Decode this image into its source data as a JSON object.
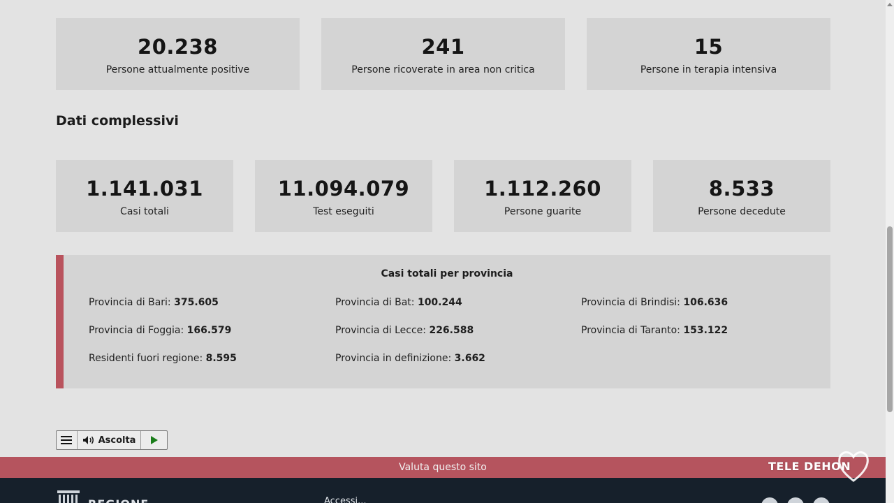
{
  "current_stats": [
    {
      "value": "20.238",
      "label": "Persone attualmente positive"
    },
    {
      "value": "241",
      "label": "Persone ricoverate in area non critica"
    },
    {
      "value": "15",
      "label": "Persone in terapia intensiva"
    }
  ],
  "section": {
    "title": "Dati complessivi"
  },
  "total_stats": [
    {
      "value": "1.141.031",
      "label": "Casi totali"
    },
    {
      "value": "11.094.079",
      "label": "Test eseguiti"
    },
    {
      "value": "1.112.260",
      "label": "Persone guarite"
    },
    {
      "value": "8.533",
      "label": "Persone decedute"
    }
  ],
  "provinces": {
    "title": "Casi totali per provincia",
    "items": [
      {
        "label": "Provincia di Bari:",
        "value": "375.605"
      },
      {
        "label": "Provincia di Bat:",
        "value": "100.244"
      },
      {
        "label": "Provincia di Brindisi:",
        "value": "106.636"
      },
      {
        "label": "Provincia di Foggia:",
        "value": "166.579"
      },
      {
        "label": "Provincia di Lecce:",
        "value": "226.588"
      },
      {
        "label": "Provincia di Taranto:",
        "value": "153.122"
      },
      {
        "label": "Residenti fuori regione:",
        "value": "8.595"
      },
      {
        "label": "Provincia in definizione:",
        "value": "3.662"
      }
    ]
  },
  "listen": {
    "label": "Ascolta"
  },
  "rate_bar": {
    "label": "Valuta questo sito"
  },
  "footer": {
    "brand": "REGIONE",
    "link": "Accessi..."
  },
  "watermark": {
    "text": "TELE DEHON"
  },
  "colors": {
    "accent": "#b5545e",
    "card": "#d4d4d4",
    "background": "#e3e3e3",
    "footer": "#16202b"
  }
}
